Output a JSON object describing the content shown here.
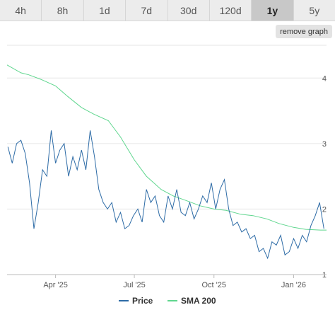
{
  "tabs": [
    {
      "label": "4h",
      "active": false
    },
    {
      "label": "8h",
      "active": false
    },
    {
      "label": "1d",
      "active": false
    },
    {
      "label": "7d",
      "active": false
    },
    {
      "label": "30d",
      "active": false
    },
    {
      "label": "120d",
      "active": false
    },
    {
      "label": "1y",
      "active": true
    },
    {
      "label": "5y",
      "active": false
    }
  ],
  "remove_graph_label": "remove graph",
  "chart_data": {
    "type": "line",
    "x_tick_labels": [
      "Apr '25",
      "Jul '25",
      "Oct '25",
      "Jan '26"
    ],
    "y_tick_labels": [
      "1",
      "2",
      "3",
      "4"
    ],
    "ylim": [
      1,
      4.5
    ],
    "x_range": [
      "2025-02-04",
      "2026-02-08"
    ],
    "legend": [
      "Price",
      "SMA 200"
    ],
    "legend_position": "bottom-center",
    "grid": "horizontal",
    "colors": {
      "price": "#2d6ba6",
      "sma": "#5fd68e"
    },
    "series": [
      {
        "name": "Price",
        "x": [
          "2025-02-05",
          "2025-02-10",
          "2025-02-15",
          "2025-02-20",
          "2025-02-25",
          "2025-03-02",
          "2025-03-07",
          "2025-03-12",
          "2025-03-17",
          "2025-03-22",
          "2025-03-27",
          "2025-04-01",
          "2025-04-06",
          "2025-04-11",
          "2025-04-16",
          "2025-04-21",
          "2025-04-26",
          "2025-05-01",
          "2025-05-06",
          "2025-05-11",
          "2025-05-16",
          "2025-05-21",
          "2025-05-26",
          "2025-05-31",
          "2025-06-05",
          "2025-06-10",
          "2025-06-15",
          "2025-06-20",
          "2025-06-25",
          "2025-06-30",
          "2025-07-05",
          "2025-07-10",
          "2025-07-15",
          "2025-07-20",
          "2025-07-25",
          "2025-07-30",
          "2025-08-04",
          "2025-08-09",
          "2025-08-14",
          "2025-08-19",
          "2025-08-24",
          "2025-08-29",
          "2025-09-03",
          "2025-09-08",
          "2025-09-13",
          "2025-09-18",
          "2025-09-23",
          "2025-09-28",
          "2025-10-03",
          "2025-10-08",
          "2025-10-13",
          "2025-10-18",
          "2025-10-23",
          "2025-10-28",
          "2025-11-02",
          "2025-11-07",
          "2025-11-12",
          "2025-11-17",
          "2025-11-22",
          "2025-11-27",
          "2025-12-02",
          "2025-12-07",
          "2025-12-12",
          "2025-12-17",
          "2025-12-22",
          "2025-12-27",
          "2026-01-01",
          "2026-01-06",
          "2026-01-11",
          "2026-01-16",
          "2026-01-21",
          "2026-01-26",
          "2026-01-31",
          "2026-02-05"
        ],
        "values": [
          2.95,
          2.7,
          3.0,
          3.05,
          2.85,
          2.4,
          1.7,
          2.1,
          2.6,
          2.5,
          3.2,
          2.7,
          2.9,
          3.0,
          2.5,
          2.8,
          2.6,
          2.9,
          2.6,
          3.2,
          2.8,
          2.3,
          2.1,
          2.0,
          2.1,
          1.8,
          1.95,
          1.7,
          1.75,
          1.9,
          2.0,
          1.8,
          2.3,
          2.1,
          2.2,
          1.9,
          1.8,
          2.2,
          2.0,
          2.3,
          1.95,
          1.9,
          2.1,
          1.85,
          2.0,
          2.2,
          2.1,
          2.4,
          2.0,
          2.3,
          2.45,
          2.0,
          1.75,
          1.8,
          1.65,
          1.7,
          1.55,
          1.6,
          1.35,
          1.4,
          1.25,
          1.5,
          1.45,
          1.6,
          1.3,
          1.35,
          1.55,
          1.4,
          1.6,
          1.5,
          1.75,
          1.9,
          2.1,
          1.7
        ]
      },
      {
        "name": "SMA 200",
        "x": [
          "2025-02-04",
          "2025-02-20",
          "2025-03-01",
          "2025-03-15",
          "2025-04-01",
          "2025-04-15",
          "2025-05-01",
          "2025-05-15",
          "2025-06-01",
          "2025-06-15",
          "2025-07-01",
          "2025-07-15",
          "2025-08-01",
          "2025-08-15",
          "2025-09-01",
          "2025-09-15",
          "2025-10-01",
          "2025-10-15",
          "2025-11-01",
          "2025-11-15",
          "2025-12-01",
          "2025-12-15",
          "2026-01-01",
          "2026-01-15",
          "2026-02-01",
          "2026-02-08"
        ],
        "values": [
          4.2,
          4.08,
          4.05,
          3.98,
          3.88,
          3.72,
          3.55,
          3.45,
          3.35,
          3.1,
          2.75,
          2.5,
          2.3,
          2.2,
          2.12,
          2.05,
          2.0,
          1.98,
          1.92,
          1.9,
          1.85,
          1.78,
          1.72,
          1.69,
          1.68,
          1.68
        ]
      }
    ]
  }
}
